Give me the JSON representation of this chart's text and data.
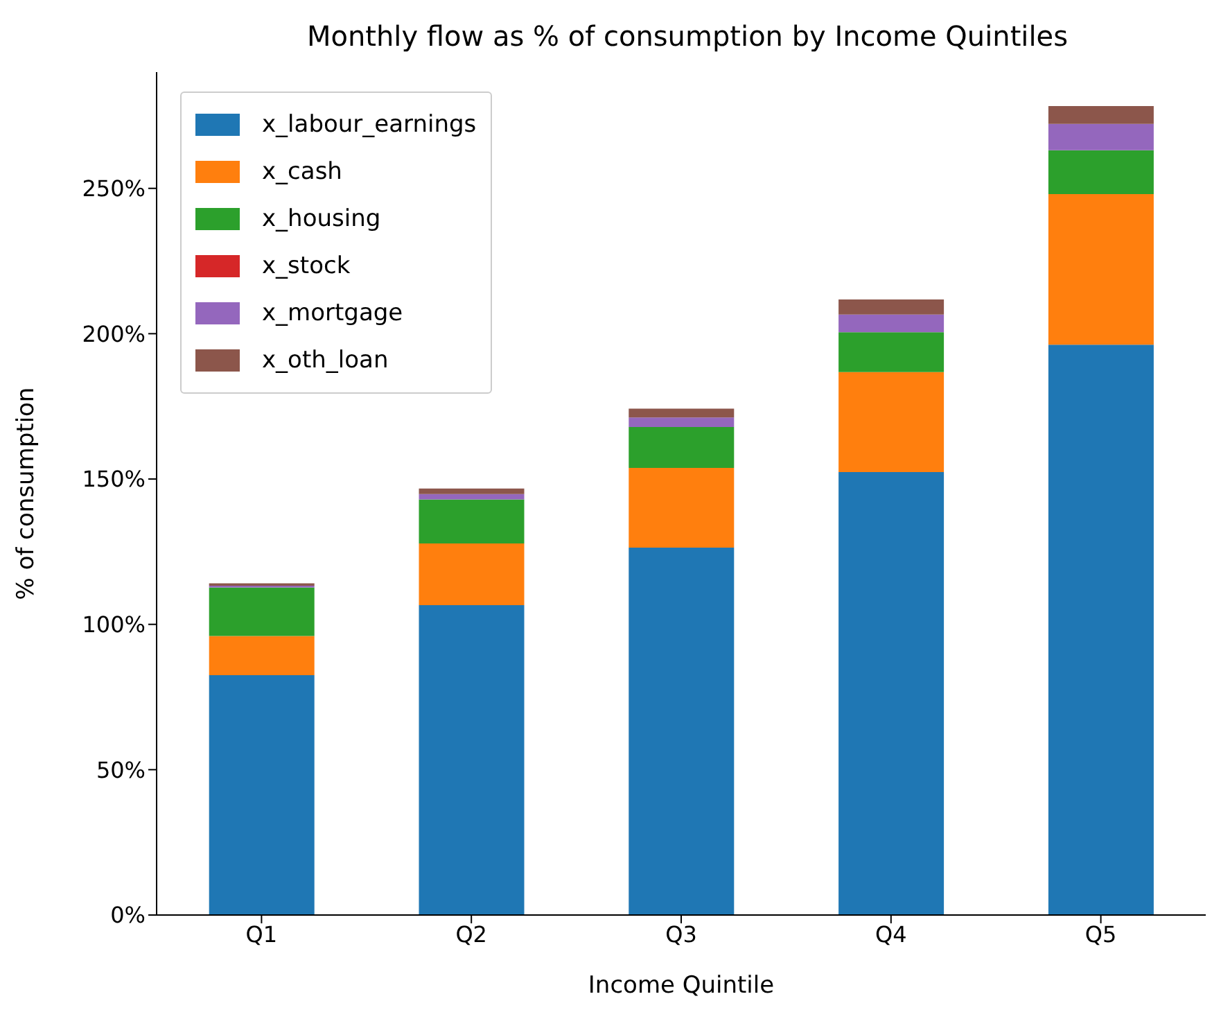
{
  "chart_data": {
    "type": "bar",
    "title": "Monthly flow as % of consumption by Income Quintiles",
    "xlabel": "Income Quintile",
    "ylabel": "% of consumption",
    "categories": [
      "Q1",
      "Q2",
      "Q3",
      "Q4",
      "Q5"
    ],
    "stacked": true,
    "series": [
      {
        "name": "x_labour_earnings",
        "color": "#1f77b4",
        "values": [
          82.5,
          106.6,
          126.4,
          152.4,
          196.2
        ]
      },
      {
        "name": "x_cash",
        "color": "#ff7f0e",
        "values": [
          13.5,
          21.2,
          27.4,
          34.4,
          51.8
        ]
      },
      {
        "name": "x_housing",
        "color": "#2ca02c",
        "values": [
          16.7,
          15.2,
          14.1,
          13.7,
          15.1
        ]
      },
      {
        "name": "x_stock",
        "color": "#d62728",
        "values": [
          0,
          0,
          0,
          0,
          0
        ]
      },
      {
        "name": "x_mortgage",
        "color": "#9467bd",
        "values": [
          0.6,
          1.8,
          3.3,
          6.1,
          9.1
        ]
      },
      {
        "name": "x_oth_loan",
        "color": "#8c564b",
        "values": [
          0.8,
          1.9,
          3.0,
          5.2,
          6.1
        ]
      }
    ],
    "ylim": [
      0,
      290
    ],
    "yticks": [
      {
        "value": 0,
        "label": "0%"
      },
      {
        "value": 50,
        "label": "50%"
      },
      {
        "value": 100,
        "label": "100%"
      },
      {
        "value": 150,
        "label": "150%"
      },
      {
        "value": 200,
        "label": "200%"
      },
      {
        "value": 250,
        "label": "250%"
      }
    ],
    "grid": false,
    "legend": "top left"
  }
}
